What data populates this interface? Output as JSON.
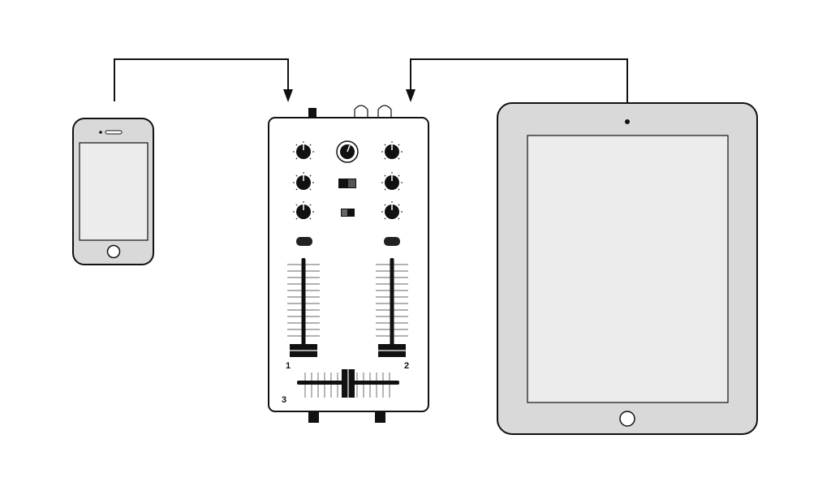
{
  "diagram": {
    "devices": [
      {
        "id": "phone",
        "name": "smartphone"
      },
      {
        "id": "mixer",
        "name": "dj-mixer"
      },
      {
        "id": "tablet",
        "name": "tablet"
      }
    ],
    "connections": [
      {
        "from": "phone",
        "to": "mixer",
        "arrow": "down-into-mixer-left"
      },
      {
        "from": "tablet",
        "to": "mixer",
        "arrow": "down-into-mixer-right"
      }
    ],
    "mixer_labels": {
      "channel_1": "1",
      "channel_2": "2",
      "crossfader": "3"
    },
    "colors": {
      "line": "#111111",
      "device_fill": "#d9d9d9",
      "screen_fill": "#ececec",
      "mixer_body": "#ffffff",
      "knob": "#111111"
    }
  }
}
